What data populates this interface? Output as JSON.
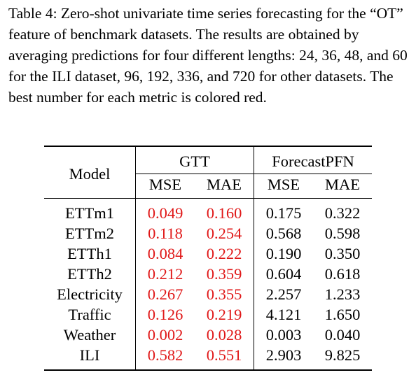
{
  "caption": "Table 4: Zero-shot univariate time series forecasting for the “OT” feature of benchmark datasets. The results are obtained by averaging predictions for four different lengths: 24, 36, 48, and 60 for the ILI dataset, 96, 192, 336, and 720 for other datasets. The best number for each metric is colored red.",
  "table": {
    "model_header": "Model",
    "groups": [
      "GTT",
      "ForecastPFN"
    ],
    "metrics": [
      "MSE",
      "MAE",
      "MSE",
      "MAE"
    ],
    "rows": [
      {
        "model": "ETTm1",
        "values": [
          "0.049",
          "0.160",
          "0.175",
          "0.322"
        ]
      },
      {
        "model": "ETTm2",
        "values": [
          "0.118",
          "0.254",
          "0.568",
          "0.598"
        ]
      },
      {
        "model": "ETTh1",
        "values": [
          "0.084",
          "0.222",
          "0.190",
          "0.350"
        ]
      },
      {
        "model": "ETTh2",
        "values": [
          "0.212",
          "0.359",
          "0.604",
          "0.618"
        ]
      },
      {
        "model": "Electricity",
        "values": [
          "0.267",
          "0.355",
          "2.257",
          "1.233"
        ]
      },
      {
        "model": "Traffic",
        "values": [
          "0.126",
          "0.219",
          "4.121",
          "1.650"
        ]
      },
      {
        "model": "Weather",
        "values": [
          "0.002",
          "0.028",
          "0.003",
          "0.040"
        ]
      },
      {
        "model": "ILI",
        "values": [
          "0.582",
          "0.551",
          "2.903",
          "9.825"
        ]
      }
    ],
    "best_color": "#e01818"
  }
}
